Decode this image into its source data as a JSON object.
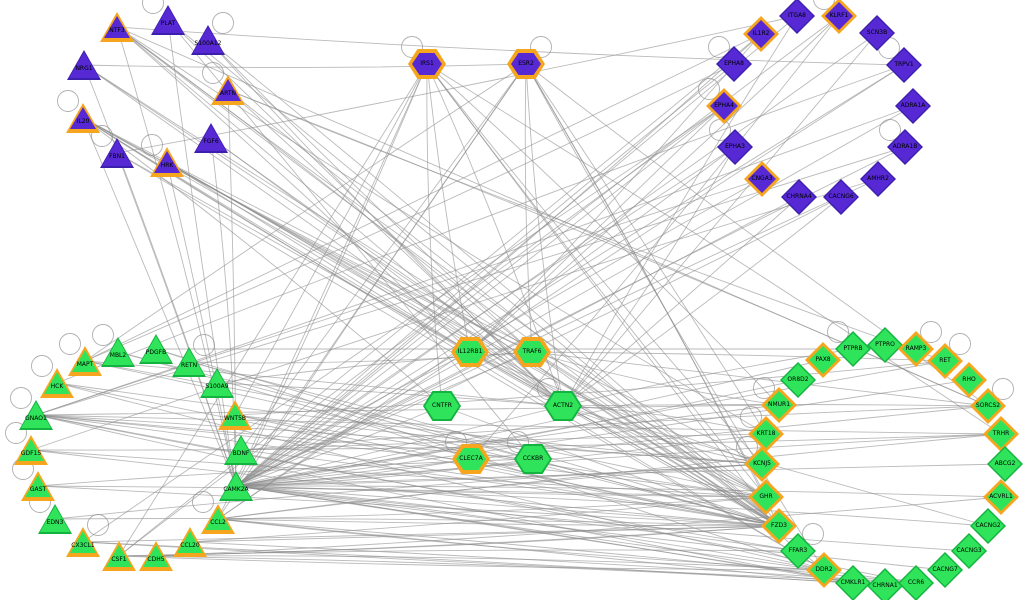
{
  "graph": {
    "description": "gene interaction network",
    "background": "#ffffff",
    "colors": {
      "purple_fill": "#5629d4",
      "purple_border": "#3d1fae",
      "green_fill": "#2fe45a",
      "green_border": "#12b33e",
      "highlight_border": "#f6a51e",
      "edge": "#8c8c8c",
      "label": "#000000"
    },
    "shape_sizes": {
      "triangle": [
        34,
        30
      ],
      "diamond": [
        36,
        36
      ],
      "hexagon": [
        38,
        30
      ]
    },
    "node_fields": [
      "id",
      "shape",
      "color",
      "x",
      "y",
      "highlighted",
      "self_loop"
    ],
    "nodes": [
      [
        "PLAT",
        "triangle",
        "purple",
        168,
        20,
        0,
        "tl"
      ],
      [
        "NTF3",
        "triangle",
        "purple",
        117,
        27,
        1,
        null
      ],
      [
        "S100A12",
        "triangle",
        "purple",
        208,
        40,
        0,
        "tr"
      ],
      [
        "NRG1",
        "triangle",
        "purple",
        84,
        65,
        0,
        null
      ],
      [
        "ARTN",
        "triangle",
        "purple",
        228,
        90,
        1,
        "tl"
      ],
      [
        "IL20",
        "triangle",
        "purple",
        83,
        118,
        1,
        "tl"
      ],
      [
        "FGF6",
        "triangle",
        "purple",
        211,
        138,
        0,
        null
      ],
      [
        "FBN1",
        "triangle",
        "purple",
        117,
        153,
        0,
        "tl"
      ],
      [
        "HRK",
        "triangle",
        "purple",
        167,
        162,
        1,
        "tl"
      ],
      [
        "IRS1",
        "hexagon",
        "purple",
        427,
        64,
        1,
        "tl"
      ],
      [
        "ESR2",
        "hexagon",
        "purple",
        526,
        64,
        1,
        "tr"
      ],
      [
        "IL1R2",
        "diamond",
        "purple",
        761,
        34,
        1,
        null
      ],
      [
        "ITGA8",
        "diamond",
        "purple",
        797,
        16,
        0,
        null
      ],
      [
        "KLRF1",
        "diamond",
        "purple",
        839,
        16,
        1,
        "tl"
      ],
      [
        "SCN3B",
        "diamond",
        "purple",
        877,
        33,
        0,
        null
      ],
      [
        "TRPV1",
        "diamond",
        "purple",
        904,
        65,
        0,
        "tl"
      ],
      [
        "ADRA1A",
        "diamond",
        "purple",
        913,
        106,
        0,
        null
      ],
      [
        "ADRA1B",
        "diamond",
        "purple",
        905,
        147,
        0,
        "tl"
      ],
      [
        "AMHR2",
        "diamond",
        "purple",
        878,
        179,
        0,
        null
      ],
      [
        "CACNG6",
        "diamond",
        "purple",
        841,
        197,
        0,
        null
      ],
      [
        "CHRNA4",
        "diamond",
        "purple",
        799,
        197,
        0,
        null
      ],
      [
        "CNGA3",
        "diamond",
        "purple",
        762,
        179,
        1,
        null
      ],
      [
        "EPHA3",
        "diamond",
        "purple",
        735,
        147,
        0,
        "tl"
      ],
      [
        "EPHA4",
        "diamond",
        "purple",
        724,
        106,
        1,
        "tl"
      ],
      [
        "EPHA8",
        "diamond",
        "purple",
        734,
        64,
        0,
        "tl"
      ],
      [
        "MBL2",
        "triangle",
        "green",
        118,
        352,
        0,
        "tl"
      ],
      [
        "PDGFB",
        "triangle",
        "green",
        156,
        349,
        0,
        null
      ],
      [
        "RETN",
        "triangle",
        "green",
        189,
        362,
        0,
        "tr"
      ],
      [
        "S100A9",
        "triangle",
        "green",
        217,
        383,
        0,
        null
      ],
      [
        "WNT5B",
        "triangle",
        "green",
        235,
        415,
        1,
        null
      ],
      [
        "BDNF",
        "triangle",
        "green",
        241,
        450,
        0,
        null
      ],
      [
        "CAMK2A",
        "triangle",
        "green",
        236,
        486,
        0,
        null
      ],
      [
        "CCL2",
        "triangle",
        "green",
        218,
        519,
        1,
        "tl"
      ],
      [
        "CCL20",
        "triangle",
        "green",
        190,
        542,
        1,
        null
      ],
      [
        "CDH5",
        "triangle",
        "green",
        156,
        556,
        1,
        null
      ],
      [
        "CSF1",
        "triangle",
        "green",
        119,
        556,
        1,
        null
      ],
      [
        "CX3CL1",
        "triangle",
        "green",
        83,
        542,
        1,
        "tr"
      ],
      [
        "EDN3",
        "triangle",
        "green",
        55,
        519,
        0,
        "tl"
      ],
      [
        "GAST",
        "triangle",
        "green",
        38,
        486,
        1,
        "tl"
      ],
      [
        "GDF15",
        "triangle",
        "green",
        31,
        450,
        1,
        "tl"
      ],
      [
        "GNAO1",
        "triangle",
        "green",
        36,
        415,
        0,
        "tl"
      ],
      [
        "HCK",
        "triangle",
        "green",
        57,
        383,
        1,
        "tl"
      ],
      [
        "MAPT",
        "triangle",
        "green",
        85,
        361,
        1,
        "tl"
      ],
      [
        "IL12RB1",
        "hexagon",
        "green",
        470,
        352,
        1,
        null
      ],
      [
        "TRAF6",
        "hexagon",
        "green",
        532,
        352,
        1,
        null
      ],
      [
        "CNTFR",
        "hexagon",
        "green",
        442,
        406,
        0,
        null
      ],
      [
        "ACTN2",
        "hexagon",
        "green",
        563,
        406,
        0,
        "tl"
      ],
      [
        "CLEC7A",
        "hexagon",
        "green",
        471,
        459,
        1,
        "tl"
      ],
      [
        "CCKBR",
        "hexagon",
        "green",
        533,
        459,
        0,
        "tl"
      ],
      [
        "PTPRB",
        "diamond",
        "green",
        853,
        349,
        0,
        "tl"
      ],
      [
        "PTPRO",
        "diamond",
        "green",
        885,
        345,
        0,
        null
      ],
      [
        "RAMP3",
        "diamond",
        "green",
        916,
        349,
        1,
        "tr"
      ],
      [
        "RET",
        "diamond",
        "green",
        945,
        361,
        1,
        "tr"
      ],
      [
        "RHO",
        "diamond",
        "green",
        969,
        380,
        1,
        null
      ],
      [
        "SORCS2",
        "diamond",
        "green",
        988,
        406,
        1,
        "tr"
      ],
      [
        "TRHR",
        "diamond",
        "green",
        1001,
        434,
        1,
        null
      ],
      [
        "ABCG2",
        "diamond",
        "green",
        1005,
        464,
        0,
        null
      ],
      [
        "ACVRL1",
        "diamond",
        "green",
        1001,
        497,
        1,
        null
      ],
      [
        "CACNG2",
        "diamond",
        "green",
        988,
        526,
        0,
        null
      ],
      [
        "CACNG3",
        "diamond",
        "green",
        969,
        551,
        0,
        null
      ],
      [
        "CACNG7",
        "diamond",
        "green",
        945,
        570,
        0,
        null
      ],
      [
        "CCR6",
        "diamond",
        "green",
        916,
        583,
        0,
        null
      ],
      [
        "CHRNA1",
        "diamond",
        "green",
        885,
        586,
        0,
        null
      ],
      [
        "CMKLR1",
        "diamond",
        "green",
        853,
        583,
        0,
        null
      ],
      [
        "DDR2",
        "diamond",
        "green",
        824,
        570,
        1,
        null
      ],
      [
        "FFAR3",
        "diamond",
        "green",
        798,
        551,
        0,
        "tr"
      ],
      [
        "FZD3",
        "diamond",
        "green",
        779,
        526,
        1,
        null
      ],
      [
        "GHR",
        "diamond",
        "green",
        766,
        497,
        1,
        null
      ],
      [
        "KCNJ5",
        "diamond",
        "green",
        762,
        464,
        1,
        "tl"
      ],
      [
        "KRT18",
        "diamond",
        "green",
        766,
        434,
        1,
        "tl"
      ],
      [
        "NMUR1",
        "diamond",
        "green",
        779,
        405,
        1,
        "tl"
      ],
      [
        "OR8D2",
        "diamond",
        "green",
        798,
        380,
        0,
        null
      ],
      [
        "PAX8",
        "diamond",
        "green",
        823,
        360,
        1,
        null
      ]
    ],
    "edges": [
      [
        "NTF3",
        "CAMK2A"
      ],
      [
        "NTF3",
        "IL12RB1"
      ],
      [
        "NTF3",
        "ACTN2"
      ],
      [
        "NTF3",
        "SORCS2"
      ],
      [
        "NTF3",
        "FZD3"
      ],
      [
        "NTF3",
        "GHR"
      ],
      [
        "NTF3",
        "KRT18"
      ],
      [
        "NTF3",
        "TRAF6"
      ],
      [
        "PLAT",
        "ACTN2"
      ],
      [
        "PLAT",
        "FZD3"
      ],
      [
        "PLAT",
        "CCKBR"
      ],
      [
        "PLAT",
        "CAMK2A"
      ],
      [
        "S100A12",
        "TRAF6"
      ],
      [
        "S100A12",
        "ACTN2"
      ],
      [
        "S100A12",
        "FZD3"
      ],
      [
        "NRG1",
        "CAMK2A"
      ],
      [
        "NRG1",
        "ACTN2"
      ],
      [
        "NRG1",
        "FZD3"
      ],
      [
        "NRG1",
        "GHR"
      ],
      [
        "NRG1",
        "ESR2"
      ],
      [
        "ARTN",
        "RET"
      ],
      [
        "ARTN",
        "SORCS2"
      ],
      [
        "ARTN",
        "ACTN2"
      ],
      [
        "ARTN",
        "CAMK2A"
      ],
      [
        "ARTN",
        "FZD3"
      ],
      [
        "IL20",
        "IL12RB1"
      ],
      [
        "IL20",
        "TRAF6"
      ],
      [
        "IL20",
        "ACTN2"
      ],
      [
        "IL20",
        "CNTFR"
      ],
      [
        "IL20",
        "FZD3"
      ],
      [
        "IL20",
        "GHR"
      ],
      [
        "IL20",
        "CAMK2A"
      ],
      [
        "IL20",
        "KCNJ5"
      ],
      [
        "IL20",
        "DDR2"
      ],
      [
        "FGF6",
        "FZD3"
      ],
      [
        "FGF6",
        "CAMK2A"
      ],
      [
        "FGF6",
        "ACTN2"
      ],
      [
        "FBN1",
        "CAMK2A"
      ],
      [
        "FBN1",
        "FZD3"
      ],
      [
        "FBN1",
        "DDR2"
      ],
      [
        "FBN1",
        "ITGA8"
      ],
      [
        "HRK",
        "TRAF6"
      ],
      [
        "HRK",
        "ACTN2"
      ],
      [
        "HRK",
        "FZD3"
      ],
      [
        "HRK",
        "CAMK2A"
      ],
      [
        "HRK",
        "IL12RB1"
      ],
      [
        "HRK",
        "GHR"
      ],
      [
        "IRS1",
        "IL12RB1"
      ],
      [
        "IRS1",
        "CNTFR"
      ],
      [
        "IRS1",
        "ACTN2"
      ],
      [
        "IRS1",
        "CAMK2A"
      ],
      [
        "IRS1",
        "CCL2"
      ],
      [
        "IRS1",
        "CSF1"
      ],
      [
        "IRS1",
        "FZD3"
      ],
      [
        "IRS1",
        "GHR"
      ],
      [
        "IRS1",
        "KCNJ5"
      ],
      [
        "IRS1",
        "NMUR1"
      ],
      [
        "IRS1",
        "TRHR"
      ],
      [
        "IRS1",
        "WNT5B"
      ],
      [
        "ESR2",
        "CAMK2A"
      ],
      [
        "ESR2",
        "CCL2"
      ],
      [
        "ESR2",
        "TRAF6"
      ],
      [
        "ESR2",
        "ACTN2"
      ],
      [
        "ESR2",
        "FZD3"
      ],
      [
        "ESR2",
        "GHR"
      ],
      [
        "ESR2",
        "KRT18"
      ],
      [
        "ESR2",
        "BDNF"
      ],
      [
        "ESR2",
        "MAPT"
      ],
      [
        "ESR2",
        "SORCS2"
      ],
      [
        "ESR2",
        "DDR2"
      ],
      [
        "IL1R2",
        "CAMK2A"
      ],
      [
        "IL1R2",
        "IL12RB1"
      ],
      [
        "IL1R2",
        "CSF1"
      ],
      [
        "IL1R2",
        "MAPT"
      ],
      [
        "ITGA8",
        "CAMK2A"
      ],
      [
        "ITGA8",
        "ACTN2"
      ],
      [
        "KLRF1",
        "CAMK2A"
      ],
      [
        "KLRF1",
        "CLEC7A"
      ],
      [
        "KLRF1",
        "IL12RB1"
      ],
      [
        "SCN3B",
        "CAMK2A"
      ],
      [
        "SCN3B",
        "ACTN2"
      ],
      [
        "TRPV1",
        "CAMK2A"
      ],
      [
        "TRPV1",
        "CCL2"
      ],
      [
        "TRPV1",
        "HCK"
      ],
      [
        "TRPV1",
        "NTF3"
      ],
      [
        "ADRA1A",
        "GNAO1"
      ],
      [
        "ADRA1A",
        "CAMK2A"
      ],
      [
        "ADRA1B",
        "GNAO1"
      ],
      [
        "ADRA1B",
        "CAMK2A"
      ],
      [
        "AMHR2",
        "CAMK2A"
      ],
      [
        "AMHR2",
        "GDF15"
      ],
      [
        "CACNG6",
        "CAMK2A"
      ],
      [
        "CACNG6",
        "ACTN2"
      ],
      [
        "CHRNA4",
        "CAMK2A"
      ],
      [
        "CHRNA4",
        "ACTN2"
      ],
      [
        "CNGA3",
        "GNAO1"
      ],
      [
        "CNGA3",
        "CAMK2A"
      ],
      [
        "EPHA3",
        "CAMK2A"
      ],
      [
        "EPHA3",
        "ACTN2"
      ],
      [
        "EPHA3",
        "CCL2"
      ],
      [
        "EPHA4",
        "CAMK2A"
      ],
      [
        "EPHA4",
        "IL12RB1"
      ],
      [
        "EPHA4",
        "CX3CL1"
      ],
      [
        "EPHA4",
        "CSF1"
      ],
      [
        "EPHA8",
        "CAMK2A"
      ],
      [
        "EPHA8",
        "MAPT"
      ],
      [
        "MBL2",
        "CLEC7A"
      ],
      [
        "MBL2",
        "FZD3"
      ],
      [
        "PDGFB",
        "PTPRB"
      ],
      [
        "PDGFB",
        "DDR2"
      ],
      [
        "PDGFB",
        "FZD3"
      ],
      [
        "RETN",
        "TRAF6"
      ],
      [
        "RETN",
        "FZD3"
      ],
      [
        "S100A9",
        "TRAF6"
      ],
      [
        "S100A9",
        "ACTN2"
      ],
      [
        "WNT5B",
        "FZD3"
      ],
      [
        "WNT5B",
        "GHR"
      ],
      [
        "WNT5B",
        "KCNJ5"
      ],
      [
        "WNT5B",
        "RET"
      ],
      [
        "BDNF",
        "SORCS2"
      ],
      [
        "BDNF",
        "FZD3"
      ],
      [
        "BDNF",
        "KRT18"
      ],
      [
        "CAMK2A",
        "FZD3"
      ],
      [
        "CAMK2A",
        "GHR"
      ],
      [
        "CAMK2A",
        "KCNJ5"
      ],
      [
        "CAMK2A",
        "KRT18"
      ],
      [
        "CAMK2A",
        "NMUR1"
      ],
      [
        "CAMK2A",
        "TRHR"
      ],
      [
        "CAMK2A",
        "SORCS2"
      ],
      [
        "CAMK2A",
        "RET"
      ],
      [
        "CAMK2A",
        "RHO"
      ],
      [
        "CAMK2A",
        "PAX8"
      ],
      [
        "CAMK2A",
        "OR8D2"
      ],
      [
        "CAMK2A",
        "DDR2"
      ],
      [
        "CAMK2A",
        "FFAR3"
      ],
      [
        "CAMK2A",
        "CMKLR1"
      ],
      [
        "CAMK2A",
        "CHRNA1"
      ],
      [
        "CAMK2A",
        "CCR6"
      ],
      [
        "CAMK2A",
        "CACNG7"
      ],
      [
        "CAMK2A",
        "CACNG3"
      ],
      [
        "CAMK2A",
        "CACNG2"
      ],
      [
        "CAMK2A",
        "ACVRL1"
      ],
      [
        "CAMK2A",
        "ABCG2"
      ],
      [
        "CAMK2A",
        "ACTN2"
      ],
      [
        "CAMK2A",
        "CNTFR"
      ],
      [
        "CAMK2A",
        "CLEC7A"
      ],
      [
        "CAMK2A",
        "CCKBR"
      ],
      [
        "CAMK2A",
        "IL12RB1"
      ],
      [
        "CAMK2A",
        "TRAF6"
      ],
      [
        "CCL2",
        "CCR6"
      ],
      [
        "CCL2",
        "CMKLR1"
      ],
      [
        "CCL2",
        "FZD3"
      ],
      [
        "CCL2",
        "GHR"
      ],
      [
        "CCL2",
        "DDR2"
      ],
      [
        "CCL2",
        "KCNJ5"
      ],
      [
        "CCL2",
        "TRHR"
      ],
      [
        "CCL20",
        "CCR6"
      ],
      [
        "CCL20",
        "FZD3"
      ],
      [
        "CCL20",
        "GHR"
      ],
      [
        "CSF1",
        "DDR2"
      ],
      [
        "CSF1",
        "FZD3"
      ],
      [
        "CSF1",
        "CMKLR1"
      ],
      [
        "CSF1",
        "FFAR3"
      ],
      [
        "CX3CL1",
        "CMKLR1"
      ],
      [
        "CX3CL1",
        "FZD3"
      ],
      [
        "CX3CL1",
        "CCR6"
      ],
      [
        "CDH5",
        "FZD3"
      ],
      [
        "CDH5",
        "ACVRL1"
      ],
      [
        "CDH5",
        "DDR2"
      ],
      [
        "GAST",
        "CCKBR"
      ],
      [
        "GAST",
        "GHR"
      ],
      [
        "GAST",
        "FZD3"
      ],
      [
        "GDF15",
        "GHR"
      ],
      [
        "GDF15",
        "FZD3"
      ],
      [
        "GDF15",
        "TRHR"
      ],
      [
        "EDN3",
        "KCNJ5"
      ],
      [
        "EDN3",
        "FZD3"
      ],
      [
        "GNAO1",
        "KCNJ5"
      ],
      [
        "GNAO1",
        "NMUR1"
      ],
      [
        "GNAO1",
        "TRHR"
      ],
      [
        "GNAO1",
        "FFAR3"
      ],
      [
        "GNAO1",
        "CMKLR1"
      ],
      [
        "GNAO1",
        "FZD3"
      ],
      [
        "GNAO1",
        "GHR"
      ],
      [
        "GNAO1",
        "CCR6"
      ],
      [
        "GNAO1",
        "CCKBR"
      ],
      [
        "HCK",
        "FZD3"
      ],
      [
        "HCK",
        "DDR2"
      ],
      [
        "HCK",
        "KCNJ5"
      ],
      [
        "MAPT",
        "FZD3"
      ],
      [
        "MAPT",
        "GHR"
      ],
      [
        "MAPT",
        "ACTN2"
      ],
      [
        "IL12RB1",
        "FZD3"
      ],
      [
        "IL12RB1",
        "GHR"
      ],
      [
        "IL12RB1",
        "KCNJ5"
      ],
      [
        "TRAF6",
        "NMUR1"
      ],
      [
        "TRAF6",
        "FZD3"
      ],
      [
        "TRAF6",
        "DDR2"
      ],
      [
        "TRAF6",
        "RET"
      ],
      [
        "TRAF6",
        "SORCS2"
      ],
      [
        "ACTN2",
        "FZD3"
      ],
      [
        "ACTN2",
        "GHR"
      ],
      [
        "ACTN2",
        "KCNJ5"
      ],
      [
        "ACTN2",
        "KRT18"
      ],
      [
        "ACTN2",
        "PTPRB"
      ],
      [
        "ACTN2",
        "SORCS2"
      ],
      [
        "ACTN2",
        "CACNG2"
      ],
      [
        "CNTFR",
        "FZD3"
      ],
      [
        "CLEC7A",
        "FZD3"
      ]
    ]
  }
}
